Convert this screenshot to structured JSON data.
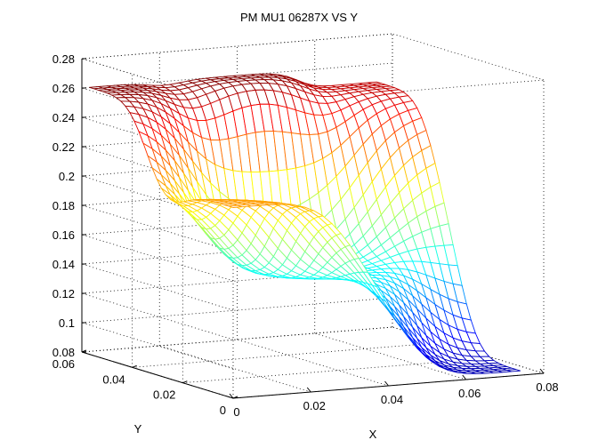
{
  "chart_data": {
    "type": "surface",
    "title": "PM MU1 06287X VS Y",
    "xlabel": "X",
    "ylabel": "Y",
    "zlabel": "",
    "xlim": [
      0,
      0.08
    ],
    "ylim": [
      0,
      0.06
    ],
    "zlim": [
      0.08,
      0.28
    ],
    "grid": true,
    "colormap": "jet",
    "x_ticks": [
      "0",
      "0.02",
      "0.04",
      "0.06",
      "0.08"
    ],
    "y_ticks": [
      "0",
      "0.02",
      "0.04",
      "0.06"
    ],
    "z_ticks": [
      "0.08",
      "0.1",
      "0.12",
      "0.14",
      "0.16",
      "0.18",
      "0.2",
      "0.22",
      "0.24",
      "0.26",
      "0.28"
    ],
    "x_extent": [
      0,
      0.074
    ],
    "y_extent": [
      0,
      0.057
    ],
    "surface_samples": [
      {
        "x": 0.0,
        "y": 0.057,
        "z": 0.262,
        "note": "back-left peak"
      },
      {
        "x": 0.073,
        "y": 0.0,
        "z": 0.083,
        "note": "front-right dip"
      },
      {
        "x": 0.073,
        "y": 0.057,
        "z": 0.25,
        "note": "right-back corner"
      },
      {
        "x": 0.0,
        "y": 0.0,
        "z": 0.21,
        "note": "front-left corner"
      },
      {
        "x": 0.037,
        "y": 0.0285,
        "z": 0.143,
        "note": "center minimum"
      },
      {
        "x": 0.037,
        "y": 0.057,
        "z": 0.262,
        "note": "back-edge peak"
      }
    ]
  }
}
